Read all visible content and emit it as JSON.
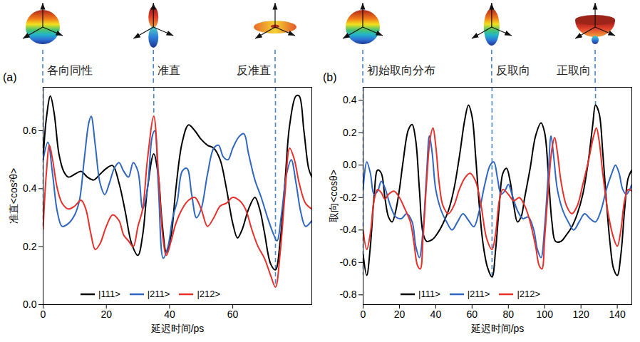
{
  "chart_data": [
    {
      "type": "line",
      "panel_label": "(a)",
      "x_label": "延迟时间/ps",
      "y_label": "准直<cos²θ>",
      "xlim": [
        0,
        85
      ],
      "xticks": [
        0,
        20,
        40,
        60
      ],
      "ylim": [
        0,
        0.75
      ],
      "yticks": [
        {
          "value": 0,
          "label": "0.0"
        },
        0.2,
        0.4,
        0.6
      ],
      "grid": false,
      "legend": "bottom",
      "annotations": [
        {
          "text": "各向同性",
          "x": 0,
          "y": 0.26
        },
        {
          "text": "准直",
          "x": 35,
          "y": 0.65
        },
        {
          "text": "反准直",
          "x": 73.5,
          "y": 0.06
        }
      ],
      "series": [
        {
          "name": "|111>",
          "color": "#000000",
          "x": [
            0,
            1,
            2.3,
            3.5,
            5,
            6.5,
            8,
            10,
            12,
            14,
            16,
            18,
            20,
            22,
            24,
            26,
            28,
            30,
            31.5,
            33,
            35,
            36.5,
            37.5,
            39,
            40.5,
            42,
            44,
            46,
            48,
            50,
            52,
            54,
            56,
            58,
            60,
            61.5,
            63,
            65,
            67,
            68.5,
            70,
            72,
            73.5,
            75,
            76.5,
            78,
            80,
            81,
            82.5,
            84,
            85
          ],
          "values": [
            0.5,
            0.64,
            0.72,
            0.66,
            0.52,
            0.46,
            0.44,
            0.45,
            0.46,
            0.44,
            0.43,
            0.45,
            0.47,
            0.48,
            0.42,
            0.32,
            0.21,
            0.17,
            0.24,
            0.4,
            0.52,
            0.44,
            0.3,
            0.18,
            0.24,
            0.4,
            0.56,
            0.62,
            0.6,
            0.57,
            0.55,
            0.54,
            0.5,
            0.4,
            0.28,
            0.23,
            0.26,
            0.33,
            0.37,
            0.33,
            0.25,
            0.14,
            0.12,
            0.22,
            0.42,
            0.62,
            0.72,
            0.72,
            0.6,
            0.47,
            0.44
          ]
        },
        {
          "name": "|211>",
          "color": "#2f66c2",
          "x": [
            0,
            1.5,
            3,
            4.5,
            6,
            8,
            10,
            11.5,
            13,
            14.5,
            15.2,
            16.5,
            18,
            19.5,
            21,
            22.5,
            24,
            25.5,
            27,
            28.5,
            30,
            31.5,
            33,
            34.5,
            35.3,
            36.5,
            38,
            39.5,
            41,
            42.5,
            44,
            45.5,
            47,
            48.5,
            50,
            52,
            54,
            55.5,
            57,
            58.5,
            60,
            62,
            63.5,
            65,
            67,
            69,
            71,
            73,
            74,
            75.5,
            77,
            78.5,
            80,
            81.5,
            83,
            85
          ],
          "values": [
            0.5,
            0.56,
            0.45,
            0.32,
            0.27,
            0.28,
            0.31,
            0.36,
            0.5,
            0.63,
            0.65,
            0.55,
            0.42,
            0.38,
            0.42,
            0.47,
            0.49,
            0.46,
            0.44,
            0.49,
            0.46,
            0.33,
            0.4,
            0.58,
            0.6,
            0.4,
            0.16,
            0.2,
            0.3,
            0.36,
            0.46,
            0.47,
            0.38,
            0.3,
            0.33,
            0.45,
            0.54,
            0.55,
            0.51,
            0.5,
            0.54,
            0.58,
            0.59,
            0.52,
            0.43,
            0.37,
            0.3,
            0.24,
            0.22,
            0.32,
            0.45,
            0.5,
            0.42,
            0.32,
            0.27,
            0.29
          ]
        },
        {
          "name": "|212>",
          "color": "#e8302a",
          "x": [
            0,
            1,
            2,
            3,
            4.5,
            6,
            8,
            10,
            12,
            13.5,
            15,
            16.5,
            18,
            20,
            22,
            24,
            25.5,
            27,
            28.5,
            30,
            31.5,
            33,
            35,
            36.5,
            38,
            39,
            40.5,
            42,
            44,
            46,
            48,
            50,
            52,
            54,
            56,
            58,
            60,
            62,
            64,
            66,
            68,
            70,
            72,
            73.5,
            75,
            76.5,
            78,
            79.5,
            81,
            83,
            85
          ],
          "values": [
            0.26,
            0.45,
            0.55,
            0.5,
            0.4,
            0.35,
            0.33,
            0.34,
            0.36,
            0.33,
            0.25,
            0.19,
            0.21,
            0.27,
            0.31,
            0.29,
            0.24,
            0.22,
            0.2,
            0.27,
            0.33,
            0.5,
            0.65,
            0.45,
            0.22,
            0.17,
            0.22,
            0.28,
            0.33,
            0.36,
            0.37,
            0.33,
            0.27,
            0.3,
            0.34,
            0.35,
            0.37,
            0.36,
            0.33,
            0.26,
            0.2,
            0.16,
            0.1,
            0.06,
            0.18,
            0.38,
            0.54,
            0.5,
            0.42,
            0.35,
            0.33
          ]
        }
      ]
    },
    {
      "type": "line",
      "panel_label": "(b)",
      "x_label": "延迟时间/ps",
      "y_label": "取向<cosθ>",
      "xlim": [
        0,
        148
      ],
      "xticks": [
        0,
        20,
        40,
        60,
        80,
        100,
        120,
        140
      ],
      "ylim": [
        -0.86,
        0.48
      ],
      "yticks": [
        -0.8,
        -0.6,
        -0.4,
        -0.2,
        {
          "value": 0,
          "label": "0.0"
        },
        0.2,
        0.4
      ],
      "grid": false,
      "legend": "bottom",
      "annotations": [
        {
          "text": "初始取向分布",
          "x": 0,
          "y": -0.68
        },
        {
          "text": "反取向",
          "x": 71,
          "y": -0.69
        },
        {
          "text": "正取向",
          "x": 128,
          "y": 0.37
        }
      ],
      "series": [
        {
          "name": "|111>",
          "color": "#000000",
          "x": [
            0,
            2,
            4,
            6,
            8,
            10,
            12,
            14,
            16,
            18,
            20,
            22,
            25,
            27,
            29,
            31,
            33,
            35,
            38,
            41,
            44,
            47,
            50,
            53,
            56,
            58,
            60,
            62,
            64,
            66,
            68.5,
            71,
            73,
            75,
            77,
            79,
            81,
            83,
            85,
            87,
            89,
            92,
            95,
            98,
            100,
            102,
            104,
            106,
            109,
            112,
            115,
            118,
            121,
            124,
            126.5,
            128,
            130,
            132,
            134,
            136,
            138,
            140,
            142,
            144,
            146,
            148
          ],
          "values": [
            -0.55,
            -0.68,
            -0.5,
            -0.2,
            -0.03,
            -0.05,
            -0.2,
            -0.32,
            -0.35,
            -0.28,
            -0.15,
            0.02,
            0.22,
            0.25,
            0.15,
            -0.15,
            -0.42,
            -0.47,
            -0.46,
            -0.42,
            -0.36,
            -0.28,
            -0.15,
            0.05,
            0.28,
            0.37,
            0.3,
            0.05,
            -0.25,
            -0.48,
            -0.63,
            -0.69,
            -0.52,
            -0.25,
            -0.05,
            -0.02,
            -0.1,
            -0.25,
            -0.35,
            -0.32,
            -0.2,
            -0.02,
            0.18,
            0.26,
            0.2,
            -0.05,
            -0.35,
            -0.47,
            -0.47,
            -0.43,
            -0.38,
            -0.3,
            -0.18,
            0.02,
            0.25,
            0.37,
            0.32,
            0.08,
            -0.22,
            -0.48,
            -0.64,
            -0.68,
            -0.55,
            -0.28,
            -0.08,
            -0.03
          ]
        },
        {
          "name": "|211>",
          "color": "#2f66c2",
          "x": [
            0,
            2,
            4,
            6,
            8,
            10,
            12,
            15,
            18,
            21,
            24,
            27,
            29,
            31,
            33,
            35,
            36.5,
            38,
            40,
            43,
            46,
            49,
            52,
            55,
            58,
            61,
            64,
            67,
            70,
            72,
            74,
            76,
            78,
            80,
            82,
            85,
            88,
            91,
            94,
            96,
            98,
            100,
            102,
            103.5,
            105,
            107,
            110,
            113,
            116,
            119,
            122,
            125,
            128,
            131,
            134,
            137,
            139,
            141,
            143,
            145,
            148
          ],
          "values": [
            -0.15,
            0.02,
            -0.05,
            -0.18,
            -0.16,
            -0.1,
            -0.14,
            -0.25,
            -0.32,
            -0.33,
            -0.3,
            -0.35,
            -0.5,
            -0.57,
            -0.4,
            -0.05,
            0.18,
            0.08,
            -0.15,
            -0.28,
            -0.35,
            -0.4,
            -0.35,
            -0.3,
            -0.34,
            -0.38,
            -0.28,
            -0.12,
            0,
            0.02,
            -0.08,
            -0.18,
            -0.16,
            -0.12,
            -0.18,
            -0.28,
            -0.33,
            -0.32,
            -0.4,
            -0.52,
            -0.57,
            -0.38,
            -0.05,
            0.18,
            0.05,
            -0.15,
            -0.28,
            -0.35,
            -0.4,
            -0.35,
            -0.3,
            -0.33,
            -0.35,
            -0.28,
            -0.15,
            -0.05,
            0,
            -0.05,
            -0.15,
            -0.18,
            -0.12
          ]
        },
        {
          "name": "|212>",
          "color": "#e8302a",
          "x": [
            0,
            2,
            4,
            6,
            8,
            10,
            12,
            14,
            17,
            20,
            23,
            26,
            28,
            30,
            31.5,
            33,
            35,
            37,
            38.5,
            40,
            42,
            44,
            47,
            50,
            53,
            56,
            59,
            62,
            65,
            68,
            71,
            73,
            75,
            77,
            80,
            83,
            86,
            89,
            92,
            95,
            97,
            98.5,
            100,
            102,
            104,
            105.5,
            107,
            109,
            112,
            115,
            118,
            121,
            124,
            127,
            128.5,
            130,
            132,
            135,
            138,
            140,
            142,
            144,
            146,
            148
          ],
          "values": [
            -0.4,
            -0.52,
            -0.42,
            -0.22,
            -0.15,
            -0.17,
            -0.21,
            -0.18,
            -0.16,
            -0.2,
            -0.27,
            -0.35,
            -0.48,
            -0.62,
            -0.64,
            -0.45,
            -0.1,
            0.17,
            0.23,
            0.12,
            -0.12,
            -0.25,
            -0.3,
            -0.25,
            -0.15,
            -0.08,
            -0.05,
            -0.1,
            -0.25,
            -0.45,
            -0.52,
            -0.42,
            -0.22,
            -0.15,
            -0.18,
            -0.22,
            -0.2,
            -0.25,
            -0.35,
            -0.5,
            -0.62,
            -0.64,
            -0.45,
            -0.15,
            0.1,
            0.17,
            0.08,
            -0.1,
            -0.25,
            -0.3,
            -0.25,
            -0.12,
            0.02,
            0.18,
            0.23,
            0.15,
            -0.05,
            -0.3,
            -0.45,
            -0.5,
            -0.4,
            -0.22,
            -0.15,
            -0.16
          ]
        }
      ]
    }
  ]
}
